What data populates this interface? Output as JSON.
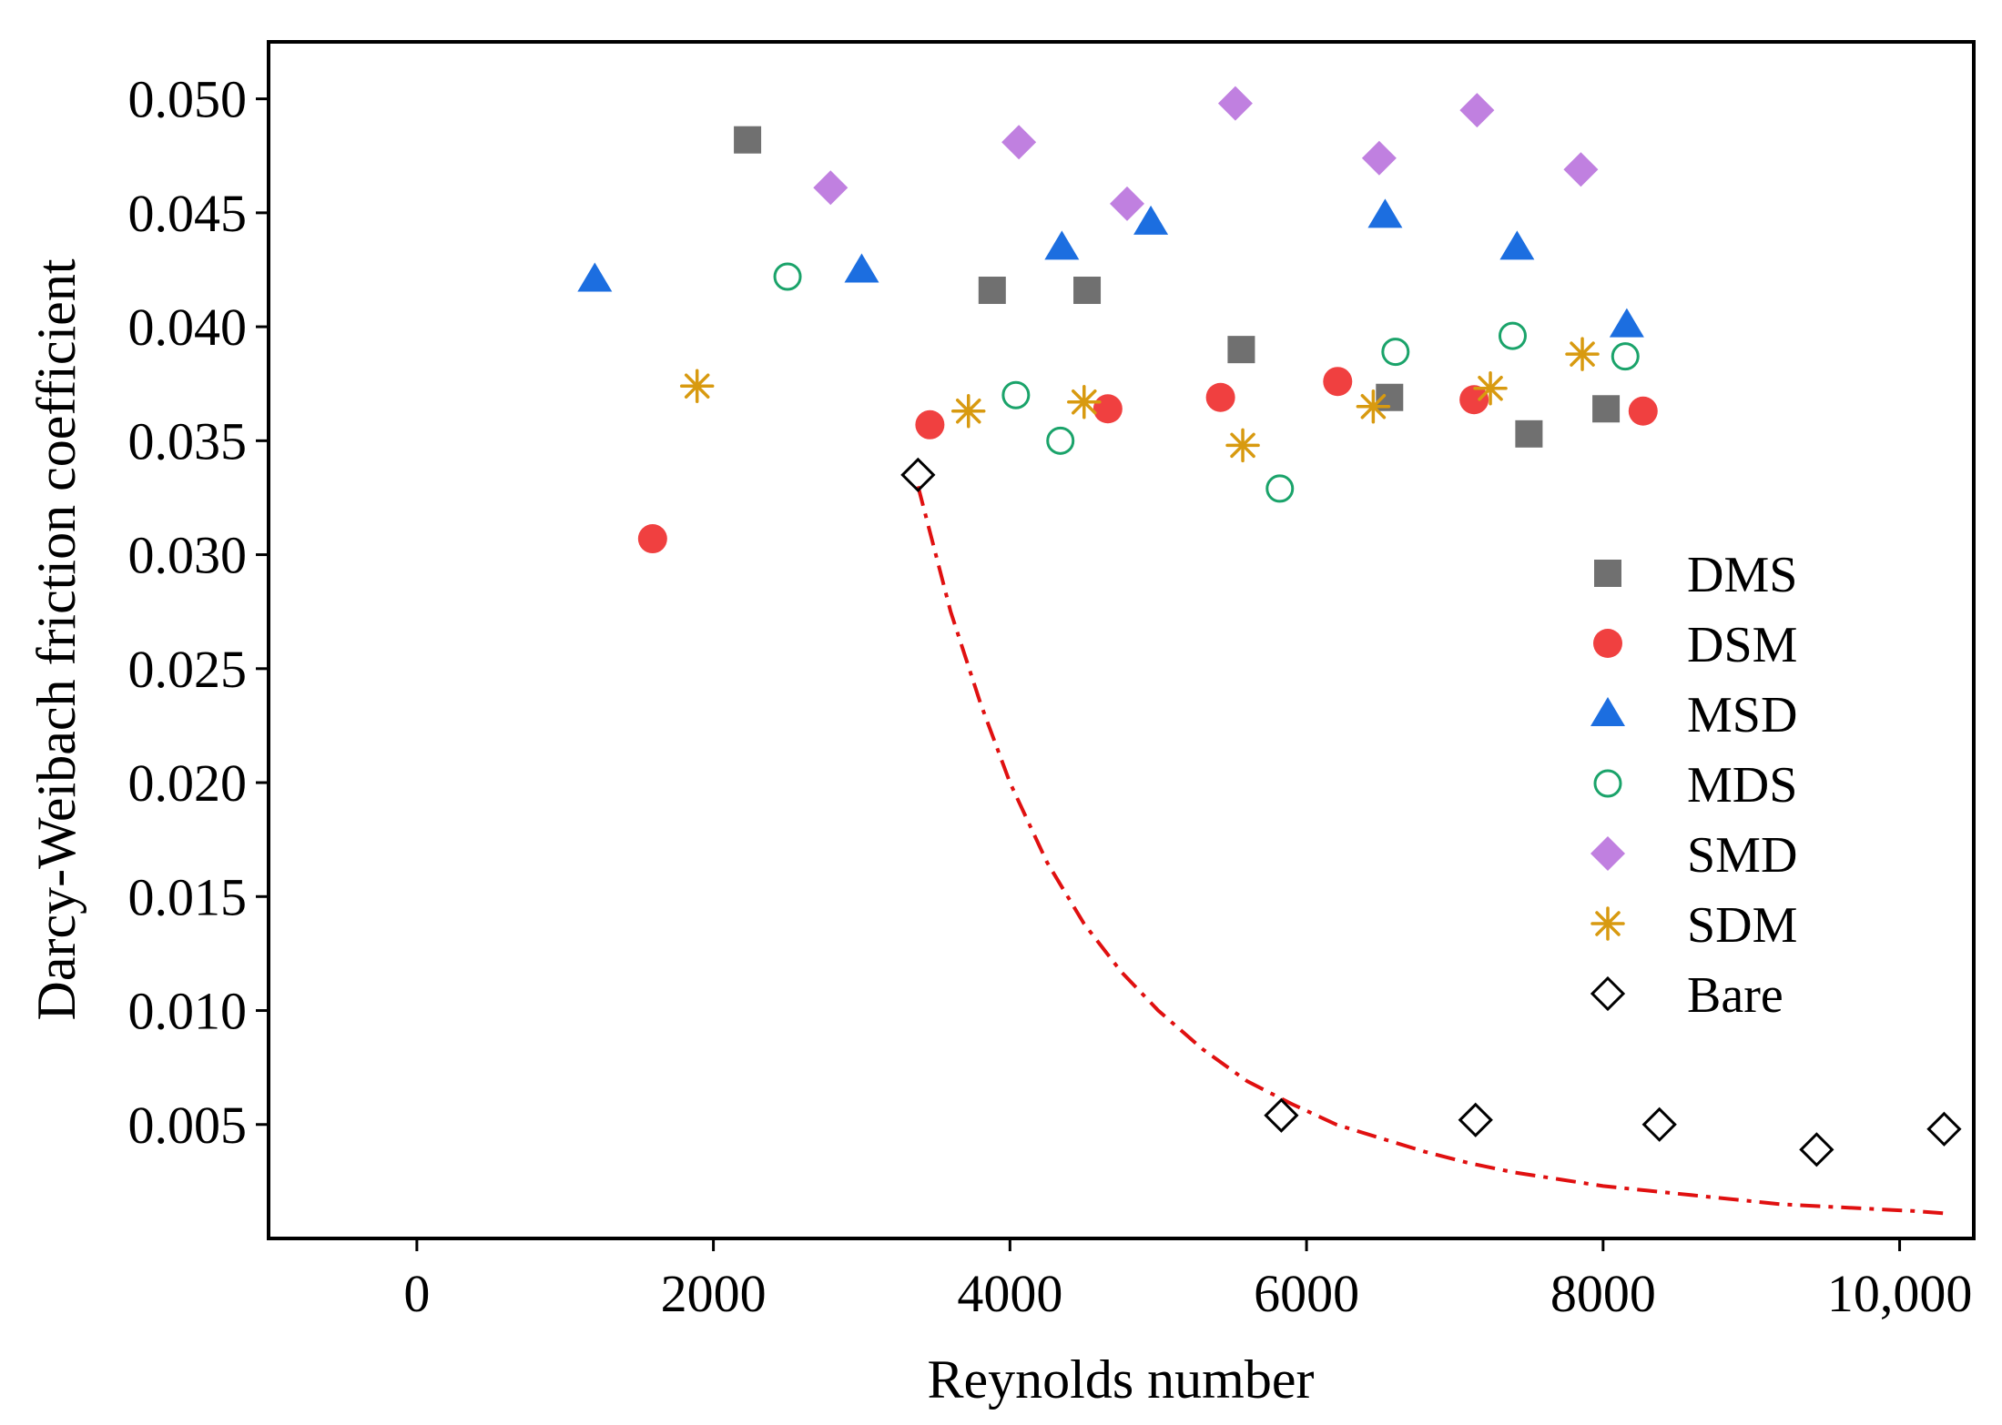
{
  "chart_data": {
    "type": "scatter",
    "title": "",
    "xlabel": "Reynolds number",
    "ylabel": "Darcy-Weibach friction coefficient",
    "xlim": [
      -1000,
      10500
    ],
    "ylim": [
      0.0,
      0.0525
    ],
    "xticks": [
      0,
      2000,
      4000,
      6000,
      8000,
      10000
    ],
    "xtick_labels": [
      "0",
      "2000",
      "4000",
      "6000",
      "8000",
      "10,000"
    ],
    "yticks": [
      0.005,
      0.01,
      0.015,
      0.02,
      0.025,
      0.03,
      0.035,
      0.04,
      0.045,
      0.05
    ],
    "ytick_labels": [
      "0.005",
      "0.010",
      "0.015",
      "0.020",
      "0.025",
      "0.030",
      "0.035",
      "0.040",
      "0.045",
      "0.050"
    ],
    "grid": false,
    "legend_position": "right",
    "series": [
      {
        "name": "DMS",
        "marker": "square",
        "color": "#707070",
        "x": [
          2230,
          3880,
          4520,
          5560,
          6560,
          7500,
          8020
        ],
        "y": [
          0.0482,
          0.0416,
          0.0416,
          0.039,
          0.0369,
          0.0353,
          0.0364
        ]
      },
      {
        "name": "DSM",
        "marker": "circle",
        "color": "#f04040",
        "x": [
          1590,
          3460,
          4660,
          5420,
          6210,
          7130,
          8270
        ],
        "y": [
          0.0307,
          0.0357,
          0.0364,
          0.0369,
          0.0376,
          0.0368,
          0.0363
        ]
      },
      {
        "name": "MSD",
        "marker": "triangle",
        "color": "#1c6ee0",
        "x": [
          1200,
          3000,
          4350,
          4950,
          6530,
          7420,
          8160
        ],
        "y": [
          0.0421,
          0.0425,
          0.0435,
          0.0446,
          0.0449,
          0.0435,
          0.0401
        ]
      },
      {
        "name": "MDS",
        "marker": "circle-open",
        "color": "#1aa36a",
        "x": [
          2500,
          4040,
          4340,
          5820,
          6600,
          7390,
          8150
        ],
        "y": [
          0.0422,
          0.037,
          0.035,
          0.0329,
          0.0389,
          0.0396,
          0.0387
        ]
      },
      {
        "name": "SMD",
        "marker": "diamond",
        "color": "#c080e0",
        "x": [
          2790,
          4060,
          4790,
          5520,
          6490,
          7150,
          7850
        ],
        "y": [
          0.0461,
          0.0481,
          0.0454,
          0.0498,
          0.0474,
          0.0495,
          0.0469
        ]
      },
      {
        "name": "SDM",
        "marker": "asterisk",
        "color": "#d89a10",
        "x": [
          1890,
          3720,
          4500,
          5570,
          6450,
          7240,
          7860
        ],
        "y": [
          0.0374,
          0.0363,
          0.0367,
          0.0348,
          0.0365,
          0.0373,
          0.0388
        ]
      },
      {
        "name": "Bare",
        "marker": "diamond-open",
        "color": "#000000",
        "x": [
          3380,
          5830,
          7140,
          8380,
          9440,
          10300
        ],
        "y": [
          0.0335,
          0.0054,
          0.0052,
          0.005,
          0.0039,
          0.0048
        ]
      }
    ],
    "fit_curve": {
      "name": "Bare fit",
      "style": "dash-dot",
      "color": "#e01010",
      "x": [
        3380,
        3600,
        3800,
        4000,
        4250,
        4500,
        4750,
        5000,
        5300,
        5600,
        5900,
        6200,
        6500,
        6800,
        7100,
        7400,
        7700,
        8000,
        8300,
        8600,
        8900,
        9200,
        9500,
        9800,
        10100,
        10300
      ],
      "y": [
        0.033,
        0.0275,
        0.0235,
        0.02,
        0.0165,
        0.0138,
        0.0117,
        0.01,
        0.0083,
        0.0069,
        0.0059,
        0.005,
        0.0044,
        0.0038,
        0.0033,
        0.0029,
        0.0026,
        0.0023,
        0.0021,
        0.0019,
        0.0017,
        0.0015,
        0.0014,
        0.0013,
        0.0012,
        0.0011
      ]
    }
  }
}
